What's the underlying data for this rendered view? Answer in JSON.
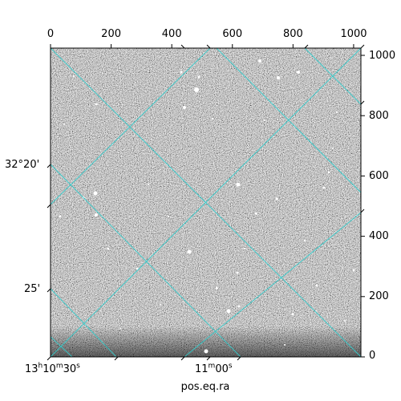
{
  "figure": {
    "kind": "astronomical image with WCS coordinate grid",
    "grid_color": "#33cccc",
    "frame_color": "#000000",
    "pixel_axes": {
      "top": {
        "range": [
          0,
          1024
        ],
        "ticks": [
          "0",
          "200",
          "400",
          "600",
          "800",
          "1000"
        ],
        "tick_values": [
          0,
          200,
          400,
          600,
          800,
          1000
        ]
      },
      "right": {
        "range": [
          0,
          1024
        ],
        "ticks": [
          "0",
          "200",
          "400",
          "600",
          "800",
          "1000"
        ],
        "tick_values": [
          0,
          200,
          400,
          600,
          800,
          1000
        ]
      }
    },
    "world_axes": {
      "bottom_xlabel": "pos.eq.ra",
      "ra_ticks": [
        {
          "h": "13",
          "m": "10",
          "s": "30"
        },
        {
          "h": "",
          "m": "11",
          "s": "00"
        }
      ],
      "dec_ticks": [
        "32°20'",
        "25'"
      ]
    }
  }
}
